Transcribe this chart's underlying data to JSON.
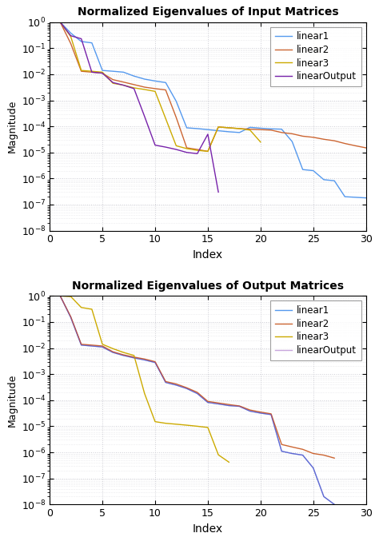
{
  "title1": "Normalized Eigenvalues of Input Matrices",
  "title2": "Normalized Eigenvalues of Output Matrices",
  "xlabel": "Index",
  "ylabel": "Magnitude",
  "legend_labels": [
    "linear1",
    "linear2",
    "linear3",
    "linearOutput"
  ],
  "colors": [
    "#5599ee",
    "#cc6633",
    "#ccaa00",
    "#7722aa"
  ],
  "ylim_log": [
    -8,
    0
  ],
  "xlim": [
    0,
    30
  ],
  "bg_color": "#ffffff",
  "grid_color": "#c8c8d0",
  "figsize": [
    4.74,
    6.77
  ],
  "dpi": 100,
  "in_lin1_x": [
    1,
    2,
    3,
    4,
    5,
    6,
    7,
    8,
    9,
    10,
    11,
    12,
    13,
    14,
    15,
    16,
    17,
    18,
    19,
    20,
    21,
    22,
    23,
    24,
    25,
    26,
    27,
    28,
    29,
    30
  ],
  "in_lin1_y": [
    1.0,
    0.38,
    0.18,
    0.16,
    0.014,
    0.013,
    0.012,
    0.0085,
    0.0065,
    0.0055,
    0.0048,
    0.00092,
    8.8e-05,
    8.2e-05,
    7.5e-05,
    6.8e-05,
    6.2e-05,
    5.8e-05,
    9.2e-05,
    8.5e-05,
    8e-05,
    7.8e-05,
    2.6e-05,
    2.2e-06,
    2e-06,
    9e-07,
    8.2e-07,
    2e-07,
    1.9e-07,
    1.8e-07
  ],
  "in_lin2_x": [
    1,
    2,
    3,
    4,
    5,
    6,
    7,
    8,
    9,
    10,
    11,
    12,
    13,
    14,
    15,
    16,
    17,
    18,
    19,
    20,
    21,
    22,
    23,
    24,
    25,
    26,
    27,
    28,
    29,
    30
  ],
  "in_lin2_y": [
    1.0,
    0.15,
    0.013,
    0.012,
    0.011,
    0.0062,
    0.005,
    0.004,
    0.0032,
    0.0028,
    0.0025,
    0.00022,
    1.5e-05,
    1.3e-05,
    1.1e-05,
    9.5e-05,
    8.8e-05,
    8.2e-05,
    7.8e-05,
    7.5e-05,
    7.2e-05,
    5.8e-05,
    5.2e-05,
    4.2e-05,
    3.8e-05,
    3.2e-05,
    2.8e-05,
    2.2e-05,
    1.8e-05,
    1.5e-05
  ],
  "in_lin3_x": [
    1,
    2,
    3,
    4,
    5,
    6,
    7,
    8,
    9,
    10,
    11,
    12,
    13,
    14,
    15,
    16,
    17,
    18,
    19,
    20
  ],
  "in_lin3_y": [
    1.0,
    0.28,
    0.014,
    0.013,
    0.012,
    0.0045,
    0.0038,
    0.003,
    0.0026,
    0.0022,
    0.0002,
    1.8e-05,
    1.4e-05,
    1.2e-05,
    1.1e-05,
    9.5e-05,
    8.8e-05,
    8.2e-05,
    7.2e-05,
    2.5e-05
  ],
  "in_linout_x": [
    1,
    2,
    3,
    4,
    5,
    6,
    7,
    8,
    9,
    10,
    11,
    12,
    13,
    14,
    15,
    16
  ],
  "in_linout_y": [
    1.0,
    0.3,
    0.23,
    0.012,
    0.011,
    0.0048,
    0.0038,
    0.0028,
    0.00024,
    1.9e-05,
    1.6e-05,
    1.3e-05,
    1e-05,
    9e-06,
    5e-05,
    3e-07
  ],
  "out_lin1_x": [
    1,
    2,
    3,
    4,
    5,
    6,
    7,
    8,
    9,
    10,
    11,
    12,
    13,
    14,
    15,
    16,
    17,
    18,
    19,
    20,
    21,
    22,
    23,
    24,
    25,
    26,
    27
  ],
  "out_lin1_y": [
    1.0,
    0.15,
    0.013,
    0.012,
    0.011,
    0.0068,
    0.0052,
    0.0042,
    0.0035,
    0.0028,
    0.00048,
    0.00038,
    0.00028,
    0.00018,
    8.2e-05,
    7.2e-05,
    6.2e-05,
    5.8e-05,
    3.8e-05,
    3.2e-05,
    2.8e-05,
    1.1e-06,
    9e-07,
    7.8e-07,
    2.5e-07,
    2e-08,
    1e-08
  ],
  "out_lin2_x": [
    1,
    2,
    3,
    4,
    5,
    6,
    7,
    8,
    9,
    10,
    11,
    12,
    13,
    14,
    15,
    16,
    17,
    18,
    19,
    20,
    21,
    22,
    23,
    24,
    25,
    26,
    27
  ],
  "out_lin2_y": [
    1.0,
    0.16,
    0.014,
    0.013,
    0.012,
    0.0072,
    0.0055,
    0.0045,
    0.0038,
    0.003,
    0.00052,
    0.00042,
    0.0003,
    0.0002,
    9e-05,
    7.8e-05,
    6.8e-05,
    6e-05,
    4.2e-05,
    3.5e-05,
    3e-05,
    2e-06,
    1.6e-06,
    1.3e-06,
    9e-07,
    7.8e-07,
    6e-07
  ],
  "out_lin3_x": [
    1,
    2,
    3,
    4,
    5,
    6,
    7,
    8,
    9,
    10,
    11,
    12,
    13,
    14,
    15,
    16,
    17
  ],
  "out_lin3_y": [
    1.0,
    0.95,
    0.36,
    0.31,
    0.014,
    0.0095,
    0.0068,
    0.0052,
    0.00018,
    1.5e-05,
    1.3e-05,
    1.2e-05,
    1.1e-05,
    1e-05,
    9e-06,
    8e-07,
    4.2e-07
  ],
  "out_linout_x": [
    1,
    2,
    3,
    4,
    5,
    6,
    7,
    8,
    9,
    10,
    11,
    12,
    13,
    14,
    15,
    16,
    17,
    18,
    19,
    20,
    21,
    22,
    23,
    24,
    25,
    26,
    27
  ],
  "out_linout_y": [
    1.0,
    0.15,
    0.013,
    0.012,
    0.011,
    0.0068,
    0.0052,
    0.0042,
    0.0035,
    0.0028,
    0.00048,
    0.00038,
    0.00028,
    0.00018,
    8.2e-05,
    7.2e-05,
    6.2e-05,
    5.8e-05,
    3.8e-05,
    3.2e-05,
    2.8e-05,
    1.1e-06,
    9e-07,
    7.8e-07,
    2.5e-07,
    2e-08,
    1e-08
  ]
}
